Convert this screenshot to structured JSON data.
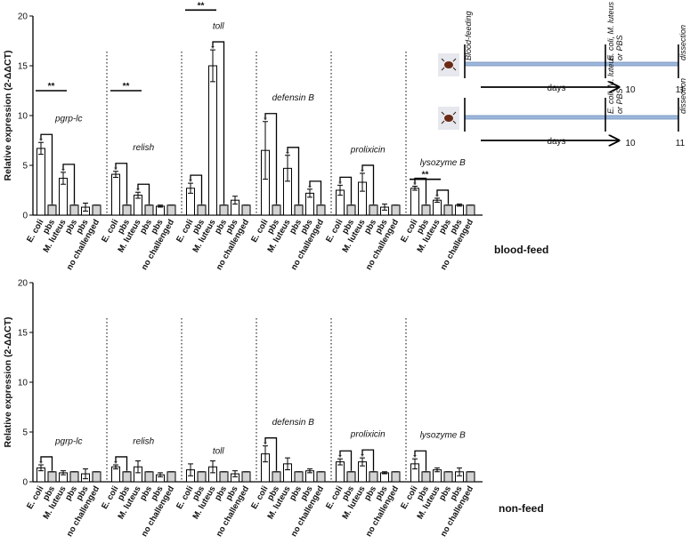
{
  "chart_data": [
    {
      "type": "bar",
      "label": "blood-feed",
      "ylabel": "Relative expression (2-ΔΔCT)",
      "ylim": [
        0,
        20
      ],
      "yticks": [
        0,
        5,
        10,
        15,
        20
      ],
      "categories": [
        "E. coli",
        "pbs",
        "M. luteus",
        "pbs",
        "pbs",
        "no challenged"
      ],
      "colors": [
        "#ffffff",
        "#d3d3d3",
        "#ffffff",
        "#d3d3d3",
        "#ffffff",
        "#d3d3d3"
      ],
      "groups": [
        {
          "name": "pgrp-lc",
          "values": [
            6.7,
            1,
            3.7,
            1,
            0.8,
            1
          ],
          "errors": [
            0.6,
            0,
            0.6,
            0,
            0.4,
            0
          ],
          "stars": [
            "*",
            null,
            "*",
            null,
            null,
            null
          ]
        },
        {
          "name": "relish",
          "values": [
            4.1,
            1,
            2.0,
            1,
            0.9,
            1
          ],
          "errors": [
            0.3,
            0,
            0.3,
            0,
            0.1,
            0
          ],
          "stars": [
            "*",
            null,
            "*",
            null,
            null,
            null
          ]
        },
        {
          "name": "toll",
          "values": [
            2.7,
            1,
            15.0,
            1,
            1.5,
            1
          ],
          "errors": [
            0.5,
            0,
            1.6,
            0,
            0.4,
            0
          ],
          "stars": [
            "*",
            null,
            "*",
            null,
            null,
            null
          ]
        },
        {
          "name": "defensin B",
          "values": [
            6.5,
            1,
            4.7,
            1,
            2.2,
            1
          ],
          "errors": [
            2.9,
            0,
            1.3,
            0,
            0.4,
            0
          ],
          "stars": [
            "*",
            null,
            "*",
            null,
            "*",
            null
          ]
        },
        {
          "name": "prolixicin",
          "values": [
            2.5,
            1,
            3.3,
            1,
            0.8,
            1
          ],
          "errors": [
            0.5,
            0,
            0.9,
            0,
            0.3,
            0
          ],
          "stars": [
            "*",
            null,
            "*",
            null,
            null,
            null
          ]
        },
        {
          "name": "lysozyme B",
          "values": [
            2.7,
            1,
            1.5,
            1,
            1.0,
            1
          ],
          "errors": [
            0.2,
            0,
            0.2,
            0,
            0.1,
            0
          ],
          "stars": [
            "*",
            null,
            "*",
            null,
            null,
            null
          ]
        }
      ],
      "significance": [
        {
          "group": 0,
          "from": 0,
          "to": 2,
          "label": "**",
          "level": 12.5
        },
        {
          "group": 1,
          "from": 0,
          "to": 2,
          "label": "**",
          "level": 12.5
        },
        {
          "group": 2,
          "from": 0,
          "to": 2,
          "label": "**",
          "level": 20.6
        },
        {
          "group": 5,
          "from": 0,
          "to": 2,
          "label": "**",
          "level": 3.6
        }
      ]
    },
    {
      "type": "bar",
      "label": "non-feed",
      "ylabel": "Relative expression (2-ΔΔCT)",
      "ylim": [
        0,
        20
      ],
      "yticks": [
        0,
        5,
        10,
        15,
        20
      ],
      "categories": [
        "E. coli",
        "pbs",
        "M. luteus",
        "pbs",
        "pbs",
        "no challenged"
      ],
      "colors": [
        "#ffffff",
        "#d3d3d3",
        "#ffffff",
        "#d3d3d3",
        "#ffffff",
        "#d3d3d3"
      ],
      "groups": [
        {
          "name": "pgrp-lc",
          "values": [
            1.4,
            1,
            0.9,
            1,
            0.8,
            1
          ],
          "errors": [
            0.3,
            0,
            0.2,
            0,
            0.5,
            0
          ],
          "stars": [
            "*",
            null,
            null,
            null,
            null,
            null
          ]
        },
        {
          "name": "relish",
          "values": [
            1.5,
            1,
            1.5,
            1,
            0.7,
            1
          ],
          "errors": [
            0.2,
            0,
            0.6,
            0,
            0.2,
            0
          ],
          "stars": [
            "*",
            null,
            null,
            null,
            null,
            null
          ]
        },
        {
          "name": "toll",
          "values": [
            1.2,
            1,
            1.5,
            1,
            0.8,
            1
          ],
          "errors": [
            0.6,
            0,
            0.6,
            0,
            0.3,
            0
          ],
          "stars": [
            null,
            null,
            null,
            null,
            null,
            null
          ]
        },
        {
          "name": "defensin B",
          "values": [
            2.8,
            1,
            1.8,
            1,
            1.1,
            1
          ],
          "errors": [
            0.8,
            0,
            0.6,
            0,
            0.2,
            0
          ],
          "stars": [
            "*",
            null,
            null,
            null,
            null,
            null
          ]
        },
        {
          "name": "prolixicin",
          "values": [
            2.0,
            1,
            2.0,
            1,
            0.9,
            1
          ],
          "errors": [
            0.3,
            0,
            0.4,
            0,
            0.1,
            0
          ],
          "stars": [
            "*",
            null,
            "*",
            null,
            null,
            null
          ]
        },
        {
          "name": "lysozyme B",
          "values": [
            1.8,
            1,
            1.2,
            1,
            1.0,
            1
          ],
          "errors": [
            0.5,
            0,
            0.2,
            0,
            0.4,
            0
          ],
          "stars": [
            "*",
            null,
            null,
            null,
            null,
            null
          ]
        }
      ],
      "significance": []
    }
  ],
  "diagram": {
    "rows": [
      {
        "start": "Blood-feeding",
        "mid": [
          "E. coli, M. luteus",
          "or PBS"
        ],
        "end": "dissection",
        "span": "days",
        "day1": "10",
        "day2": "11"
      },
      {
        "mid": [
          "E. coli, M. luteus",
          "or PBS"
        ],
        "end": "dissection",
        "span": "days",
        "day1": "10",
        "day2": "11"
      }
    ]
  }
}
